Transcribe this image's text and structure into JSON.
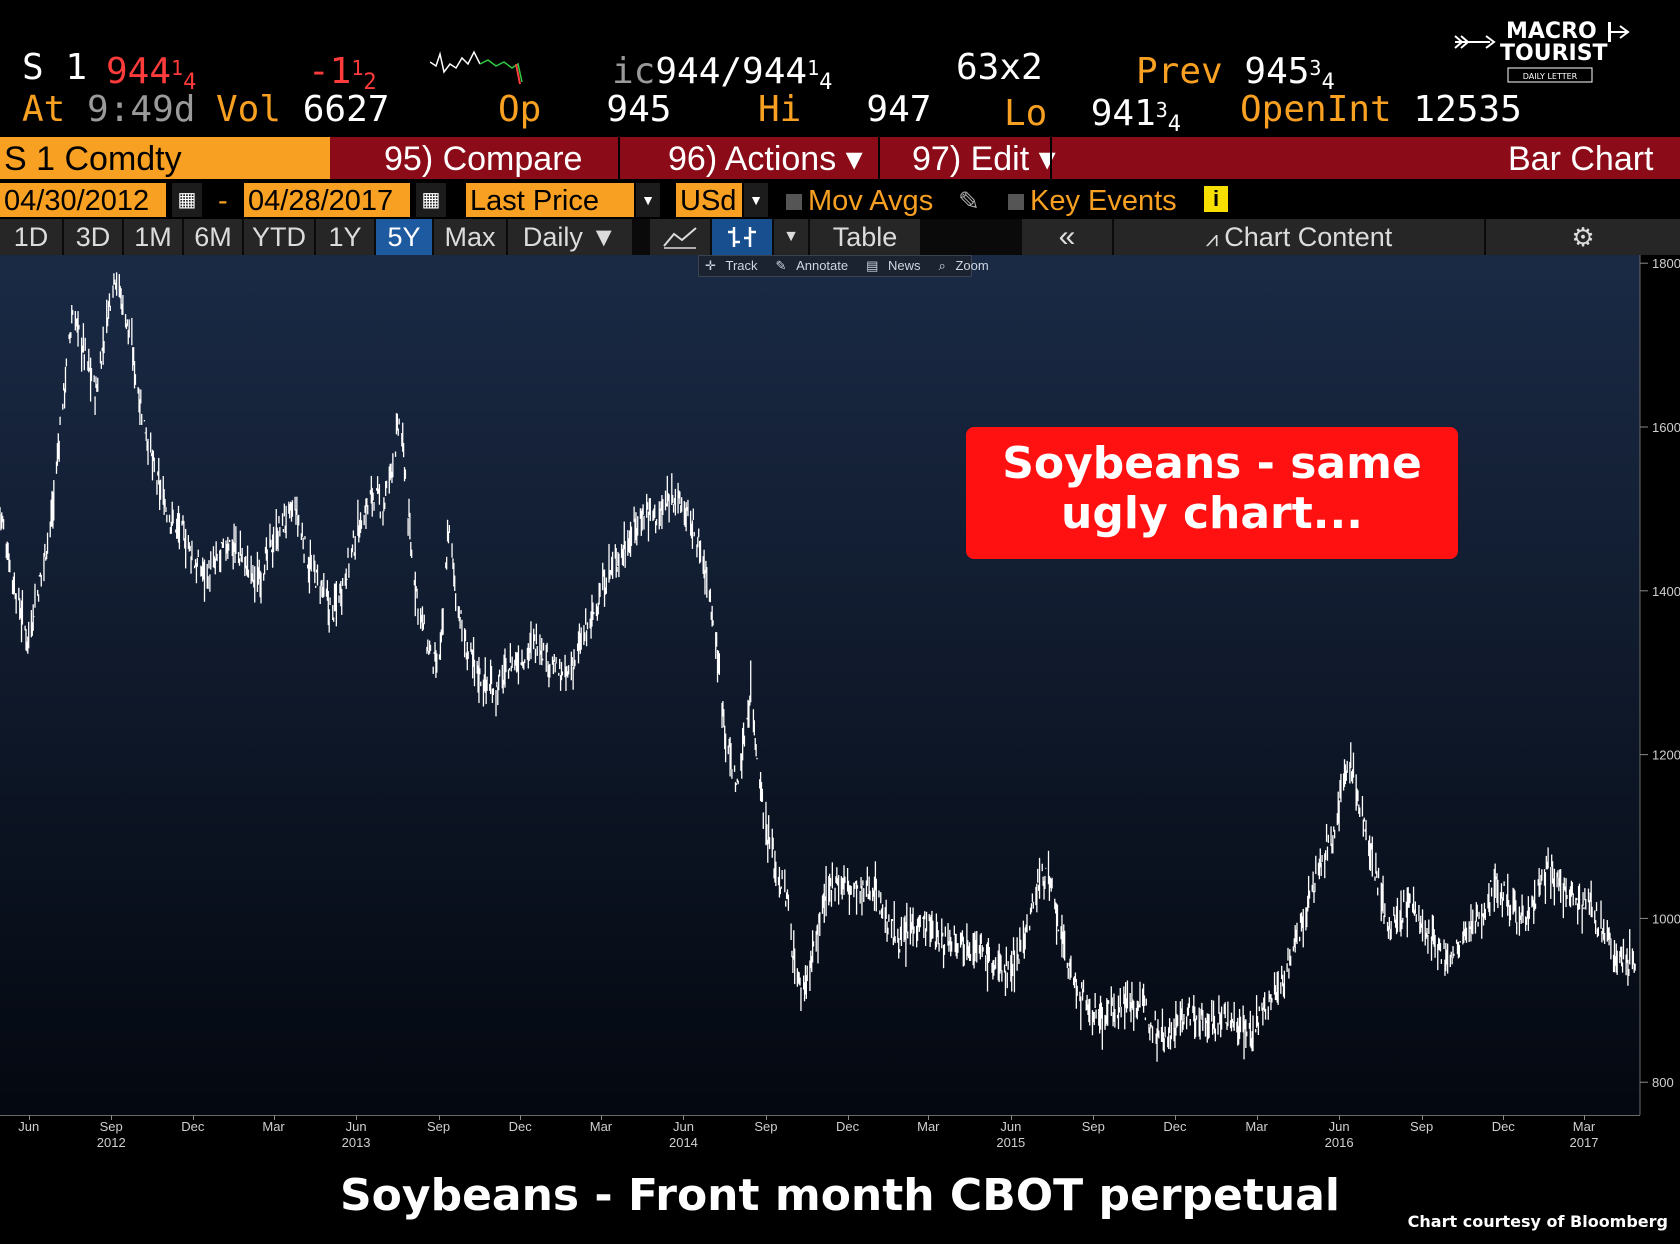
{
  "quote": {
    "ticker": "S 1",
    "last_main": "944",
    "last_frac_num": "1",
    "last_frac_den": "4",
    "change_main": "-1",
    "change_frac_num": "1",
    "change_frac_den": "2",
    "ic_label": "ic",
    "bid_ask_main": "944/944",
    "bid_ask_frac_num": "1",
    "bid_ask_frac_den": "4",
    "size": "63x2",
    "prev_label": "Prev",
    "prev_main": "945",
    "prev_frac_num": "3",
    "prev_frac_den": "4",
    "at_label": "At",
    "at_time": "9:49d",
    "vol_label": "Vol",
    "vol_value": "6627",
    "op_label": "Op",
    "op_value": "945",
    "hi_label": "Hi",
    "hi_value": "947",
    "lo_label": "Lo",
    "lo_main": "941",
    "lo_frac_num": "3",
    "lo_frac_den": "4",
    "openint_label": "OpenInt",
    "openint_value": "12535"
  },
  "menu": {
    "security": "S 1 Comdty",
    "compare": "95) Compare",
    "actions": "96) Actions ▾",
    "edit": "97) Edit ▾",
    "chart_type": "Bar Chart"
  },
  "controls": {
    "date_from": "04/30/2012",
    "date_dash": "-",
    "date_to": "04/28/2017",
    "field": "Last Price",
    "currency": "USd",
    "mov_avgs": "Mov Avgs",
    "key_events": "Key Events"
  },
  "toolbar": {
    "ranges": [
      "1D",
      "3D",
      "1M",
      "6M",
      "YTD",
      "1Y",
      "5Y",
      "Max"
    ],
    "active_range": "5Y",
    "period": "Daily ▼",
    "table": "Table",
    "collapse": "«",
    "chart_content": "Chart Content"
  },
  "mini_toolbar": {
    "track": "Track",
    "annotate": "Annotate",
    "news": "News",
    "zoom": "Zoom"
  },
  "logo": {
    "line1": "MACRO",
    "line2": "TOURIST",
    "line3": "DAILY LETTER"
  },
  "callout": {
    "line1": "Soybeans - same",
    "line2": "ugly chart..."
  },
  "caption": "Soybeans - Front month CBOT perpetual",
  "credit": "Chart courtesy of Bloomberg",
  "colors": {
    "orange": "#f7a021",
    "menu_red": "#8b0c18",
    "callout_red": "#ff1111",
    "chart_bg_top": "#1a2a45",
    "chart_bg_bottom": "#040810"
  },
  "chart_data": {
    "type": "line",
    "subtype": "daily bar (OHLC)",
    "ylim": [
      760,
      1810
    ],
    "y_ticks": [
      800,
      1000,
      1200,
      1400,
      1600,
      1800
    ],
    "x_range": [
      "2012-04-30",
      "2017-04-28"
    ],
    "x_ticks": [
      {
        "date": "2012-06-01",
        "label": "Jun",
        "year": ""
      },
      {
        "date": "2012-09-01",
        "label": "Sep",
        "year": "2012"
      },
      {
        "date": "2012-12-01",
        "label": "Dec",
        "year": ""
      },
      {
        "date": "2013-03-01",
        "label": "Mar",
        "year": ""
      },
      {
        "date": "2013-06-01",
        "label": "Jun",
        "year": "2013"
      },
      {
        "date": "2013-09-01",
        "label": "Sep",
        "year": ""
      },
      {
        "date": "2013-12-01",
        "label": "Dec",
        "year": ""
      },
      {
        "date": "2014-03-01",
        "label": "Mar",
        "year": ""
      },
      {
        "date": "2014-06-01",
        "label": "Jun",
        "year": "2014"
      },
      {
        "date": "2014-09-01",
        "label": "Sep",
        "year": ""
      },
      {
        "date": "2014-12-01",
        "label": "Dec",
        "year": ""
      },
      {
        "date": "2015-03-01",
        "label": "Mar",
        "year": ""
      },
      {
        "date": "2015-06-01",
        "label": "Jun",
        "year": "2015"
      },
      {
        "date": "2015-09-01",
        "label": "Sep",
        "year": ""
      },
      {
        "date": "2015-12-01",
        "label": "Dec",
        "year": ""
      },
      {
        "date": "2016-03-01",
        "label": "Mar",
        "year": ""
      },
      {
        "date": "2016-06-01",
        "label": "Jun",
        "year": "2016"
      },
      {
        "date": "2016-09-01",
        "label": "Sep",
        "year": ""
      },
      {
        "date": "2016-12-01",
        "label": "Dec",
        "year": ""
      },
      {
        "date": "2017-03-01",
        "label": "Mar",
        "year": "2017"
      }
    ],
    "series": [
      {
        "points": [
          [
            "2012-04-30",
            1500
          ],
          [
            "2012-05-15",
            1410
          ],
          [
            "2012-05-31",
            1340
          ],
          [
            "2012-06-15",
            1420
          ],
          [
            "2012-06-28",
            1500
          ],
          [
            "2012-07-06",
            1600
          ],
          [
            "2012-07-20",
            1740
          ],
          [
            "2012-07-31",
            1700
          ],
          [
            "2012-08-15",
            1640
          ],
          [
            "2012-08-31",
            1760
          ],
          [
            "2012-09-05",
            1790
          ],
          [
            "2012-09-20",
            1720
          ],
          [
            "2012-10-05",
            1620
          ],
          [
            "2012-10-20",
            1540
          ],
          [
            "2012-11-05",
            1490
          ],
          [
            "2012-11-20",
            1470
          ],
          [
            "2012-12-05",
            1430
          ],
          [
            "2012-12-20",
            1420
          ],
          [
            "2013-01-10",
            1460
          ],
          [
            "2013-01-25",
            1440
          ],
          [
            "2013-02-10",
            1410
          ],
          [
            "2013-02-25",
            1450
          ],
          [
            "2013-03-10",
            1480
          ],
          [
            "2013-03-25",
            1500
          ],
          [
            "2013-04-10",
            1430
          ],
          [
            "2013-04-25",
            1400
          ],
          [
            "2013-05-05",
            1370
          ],
          [
            "2013-05-20",
            1420
          ],
          [
            "2013-06-05",
            1480
          ],
          [
            "2013-06-20",
            1520
          ],
          [
            "2013-07-01",
            1500
          ],
          [
            "2013-07-12",
            1560
          ],
          [
            "2013-07-20",
            1610
          ],
          [
            "2013-07-26",
            1540
          ],
          [
            "2013-08-01",
            1450
          ],
          [
            "2013-08-10",
            1380
          ],
          [
            "2013-08-20",
            1330
          ],
          [
            "2013-08-31",
            1300
          ],
          [
            "2013-09-06",
            1360
          ],
          [
            "2013-09-12",
            1480
          ],
          [
            "2013-09-20",
            1400
          ],
          [
            "2013-10-01",
            1330
          ],
          [
            "2013-10-20",
            1290
          ],
          [
            "2013-11-05",
            1280
          ],
          [
            "2013-11-20",
            1310
          ],
          [
            "2013-12-05",
            1320
          ],
          [
            "2013-12-20",
            1340
          ],
          [
            "2014-01-05",
            1310
          ],
          [
            "2014-01-20",
            1290
          ],
          [
            "2014-02-05",
            1330
          ],
          [
            "2014-02-20",
            1370
          ],
          [
            "2014-03-05",
            1410
          ],
          [
            "2014-03-20",
            1440
          ],
          [
            "2014-04-05",
            1470
          ],
          [
            "2014-04-20",
            1500
          ],
          [
            "2014-05-05",
            1490
          ],
          [
            "2014-05-20",
            1520
          ],
          [
            "2014-06-01",
            1500
          ],
          [
            "2014-06-15",
            1470
          ],
          [
            "2014-06-30",
            1400
          ],
          [
            "2014-07-10",
            1310
          ],
          [
            "2014-07-20",
            1210
          ],
          [
            "2014-07-31",
            1160
          ],
          [
            "2014-08-08",
            1220
          ],
          [
            "2014-08-15",
            1280
          ],
          [
            "2014-08-22",
            1200
          ],
          [
            "2014-09-01",
            1110
          ],
          [
            "2014-09-15",
            1050
          ],
          [
            "2014-09-25",
            1020
          ],
          [
            "2014-10-01",
            960
          ],
          [
            "2014-10-10",
            910
          ],
          [
            "2014-10-20",
            940
          ],
          [
            "2014-11-01",
            1000
          ],
          [
            "2014-11-15",
            1050
          ],
          [
            "2014-12-01",
            1040
          ],
          [
            "2014-12-15",
            1030
          ],
          [
            "2015-01-01",
            1040
          ],
          [
            "2015-01-15",
            990
          ],
          [
            "2015-02-01",
            970
          ],
          [
            "2015-02-15",
            1000
          ],
          [
            "2015-03-01",
            990
          ],
          [
            "2015-03-15",
            970
          ],
          [
            "2015-04-01",
            980
          ],
          [
            "2015-04-15",
            970
          ],
          [
            "2015-05-01",
            960
          ],
          [
            "2015-05-15",
            940
          ],
          [
            "2015-06-01",
            940
          ],
          [
            "2015-06-20",
            990
          ],
          [
            "2015-07-01",
            1040
          ],
          [
            "2015-07-10",
            1060
          ],
          [
            "2015-07-20",
            1010
          ],
          [
            "2015-07-31",
            960
          ],
          [
            "2015-08-10",
            920
          ],
          [
            "2015-08-25",
            890
          ],
          [
            "2015-09-10",
            880
          ],
          [
            "2015-09-25",
            890
          ],
          [
            "2015-10-10",
            900
          ],
          [
            "2015-10-25",
            890
          ],
          [
            "2015-11-10",
            870
          ],
          [
            "2015-11-25",
            860
          ],
          [
            "2015-12-10",
            880
          ],
          [
            "2015-12-25",
            880
          ],
          [
            "2016-01-10",
            870
          ],
          [
            "2016-01-25",
            880
          ],
          [
            "2016-02-10",
            870
          ],
          [
            "2016-02-25",
            860
          ],
          [
            "2016-03-10",
            890
          ],
          [
            "2016-03-25",
            910
          ],
          [
            "2016-04-10",
            960
          ],
          [
            "2016-04-25",
            1010
          ],
          [
            "2016-05-10",
            1060
          ],
          [
            "2016-05-25",
            1100
          ],
          [
            "2016-06-05",
            1170
          ],
          [
            "2016-06-15",
            1190
          ],
          [
            "2016-06-25",
            1130
          ],
          [
            "2016-07-05",
            1090
          ],
          [
            "2016-07-15",
            1040
          ],
          [
            "2016-07-25",
            990
          ],
          [
            "2016-08-05",
            1000
          ],
          [
            "2016-08-20",
            1020
          ],
          [
            "2016-09-05",
            980
          ],
          [
            "2016-09-20",
            960
          ],
          [
            "2016-10-05",
            950
          ],
          [
            "2016-10-20",
            980
          ],
          [
            "2016-11-05",
            1000
          ],
          [
            "2016-11-20",
            1040
          ],
          [
            "2016-12-05",
            1030
          ],
          [
            "2016-12-20",
            1000
          ],
          [
            "2017-01-05",
            1020
          ],
          [
            "2017-01-20",
            1060
          ],
          [
            "2017-02-05",
            1040
          ],
          [
            "2017-02-20",
            1030
          ],
          [
            "2017-03-05",
            1020
          ],
          [
            "2017-03-20",
            990
          ],
          [
            "2017-04-01",
            960
          ],
          [
            "2017-04-15",
            950
          ],
          [
            "2017-04-28",
            944
          ]
        ]
      }
    ]
  }
}
